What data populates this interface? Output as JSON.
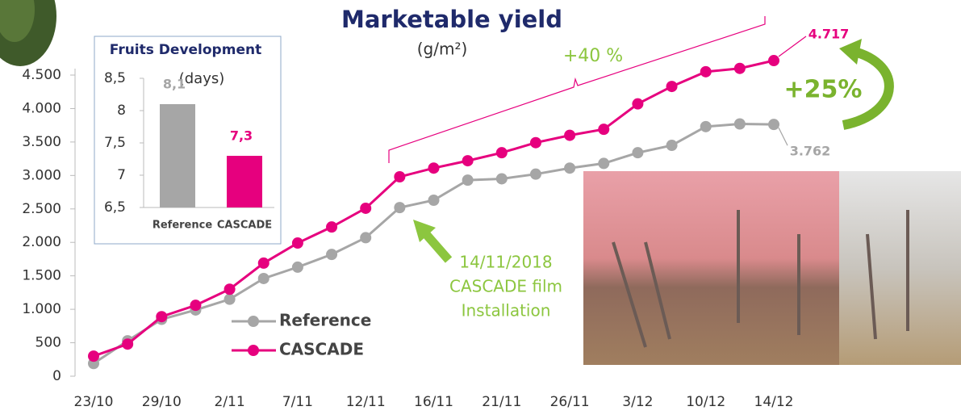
{
  "chart_data": [
    {
      "type": "line",
      "title": "Marketable yield",
      "subtitle": "(g/m²)",
      "categories": [
        "23/10",
        null,
        "29/10",
        null,
        "2/11",
        null,
        "7/11",
        null,
        "12/11",
        null,
        "16/11",
        null,
        "21/11",
        null,
        "26/11",
        null,
        "3/12",
        null,
        "10/12",
        null,
        "14/12"
      ],
      "series": [
        {
          "name": "Reference",
          "color": "#a6a6a6",
          "values": [
            190,
            530,
            850,
            990,
            1150,
            1460,
            1630,
            1820,
            2070,
            2520,
            2630,
            2930,
            2950,
            3020,
            3110,
            3180,
            3340,
            3450,
            3730,
            3770,
            3762
          ],
          "value_labels": [
            null,
            null,
            null,
            null,
            null,
            null,
            null,
            null,
            null,
            null,
            null,
            null,
            null,
            null,
            null,
            null,
            null,
            null,
            null,
            null,
            "3.762"
          ]
        },
        {
          "name": "CASCADE",
          "color": "#e6007e",
          "values": [
            300,
            480,
            890,
            1060,
            1300,
            1690,
            1990,
            2230,
            2510,
            2980,
            3110,
            3220,
            3340,
            3490,
            3600,
            3690,
            4070,
            4330,
            4550,
            4600,
            4717
          ],
          "value_labels": [
            null,
            null,
            null,
            null,
            null,
            null,
            null,
            null,
            null,
            null,
            null,
            null,
            null,
            null,
            null,
            null,
            null,
            null,
            null,
            null,
            "4.717"
          ]
        }
      ],
      "ylim": [
        0,
        4500
      ],
      "yticks": [
        0,
        500,
        {
          "value": 1000,
          "label": "1.000"
        },
        {
          "value": 1500,
          "label": "1.500"
        },
        {
          "value": 2000,
          "label": "2.000"
        },
        {
          "value": 2500,
          "label": "2.500"
        },
        {
          "value": 3000,
          "label": "3.000"
        },
        {
          "value": 3500,
          "label": "3.500"
        },
        {
          "value": 4000,
          "label": "4.000"
        },
        {
          "value": 4500,
          "label": "4.500"
        }
      ],
      "annotations": [
        "+40 %",
        "+25%",
        "14/11/2018",
        "CASCADE film",
        "Installation"
      ]
    },
    {
      "type": "bar",
      "title": "Fruits Development",
      "subtitle": "(days)",
      "categories": [
        "Reference",
        "CASCADE"
      ],
      "values": [
        8.1,
        7.3
      ],
      "value_labels": [
        "8,1",
        "7,3"
      ],
      "colors": [
        "#a6a6a6",
        "#e6007e"
      ],
      "ylim": [
        6.5,
        8.5
      ],
      "yticks": [
        {
          "value": 6.5,
          "label": "6,5"
        },
        7,
        {
          "value": 7.5,
          "label": "7,5"
        },
        8,
        {
          "value": 8.5,
          "label": "8,5"
        }
      ]
    }
  ]
}
